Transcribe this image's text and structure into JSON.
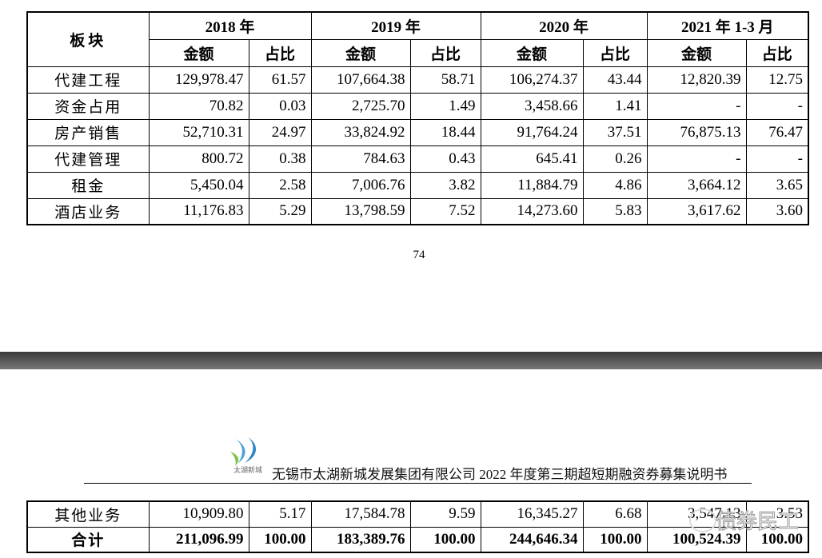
{
  "table": {
    "row_header": "板块",
    "group_headers": [
      "2018 年",
      "2019 年",
      "2020 年",
      "2021 年 1-3 月"
    ],
    "sub_headers": [
      "金额",
      "占比",
      "金额",
      "占比",
      "金额",
      "占比",
      "金额",
      "占比"
    ],
    "rows": [
      [
        "代建工程",
        "129,978.47",
        "61.57",
        "107,664.38",
        "58.71",
        "106,274.37",
        "43.44",
        "12,820.39",
        "12.75"
      ],
      [
        "资金占用",
        "70.82",
        "0.03",
        "2,725.70",
        "1.49",
        "3,458.66",
        "1.41",
        "-",
        "-"
      ],
      [
        "房产销售",
        "52,710.31",
        "24.97",
        "33,824.92",
        "18.44",
        "91,764.24",
        "37.51",
        "76,875.13",
        "76.47"
      ],
      [
        "代建管理",
        "800.72",
        "0.38",
        "784.63",
        "0.43",
        "645.41",
        "0.26",
        "-",
        "-"
      ],
      [
        "租金",
        "5,450.04",
        "2.58",
        "7,006.76",
        "3.82",
        "11,884.79",
        "4.86",
        "3,664.12",
        "3.65"
      ],
      [
        "酒店业务",
        "11,176.83",
        "5.29",
        "13,798.59",
        "7.52",
        "14,273.60",
        "5.83",
        "3,617.62",
        "3.60"
      ]
    ]
  },
  "page_number": "74",
  "logo_text": "太湖新城",
  "doc_header": "无锡市太湖新城发展集团有限公司 2022 年度第三期超短期融资券募集说明书",
  "continued_rows": [
    [
      "其他业务",
      "10,909.80",
      "5.17",
      "17,584.78",
      "9.59",
      "16,345.27",
      "6.68",
      "3,547.13",
      "3.53"
    ],
    [
      "合计",
      "211,096.99",
      "100.00",
      "183,389.76",
      "100.00",
      "244,646.34",
      "100.00",
      "100,524.39",
      "100.00"
    ]
  ],
  "watermark": "债券民工"
}
